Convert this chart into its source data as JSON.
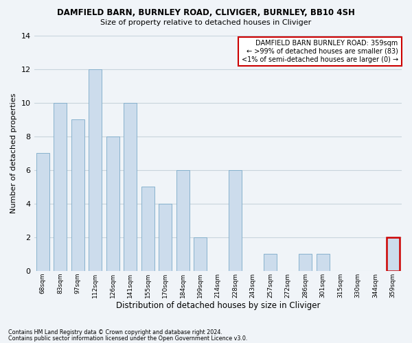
{
  "title": "DAMFIELD BARN, BURNLEY ROAD, CLIVIGER, BURNLEY, BB10 4SH",
  "subtitle": "Size of property relative to detached houses in Cliviger",
  "xlabel": "Distribution of detached houses by size in Cliviger",
  "ylabel": "Number of detached properties",
  "categories": [
    "68sqm",
    "83sqm",
    "97sqm",
    "112sqm",
    "126sqm",
    "141sqm",
    "155sqm",
    "170sqm",
    "184sqm",
    "199sqm",
    "214sqm",
    "228sqm",
    "243sqm",
    "257sqm",
    "272sqm",
    "286sqm",
    "301sqm",
    "315sqm",
    "330sqm",
    "344sqm",
    "359sqm"
  ],
  "values": [
    7,
    10,
    9,
    12,
    8,
    10,
    5,
    4,
    6,
    2,
    0,
    6,
    0,
    1,
    0,
    1,
    1,
    0,
    0,
    0,
    2
  ],
  "bar_color": "#ccdcec",
  "bar_edge_color": "#7aaac8",
  "highlight_index": 20,
  "highlight_bar_edge_color": "#cc0000",
  "annotation_box_color": "#cc0000",
  "annotation_text": [
    "DAMFIELD BARN BURNLEY ROAD: 359sqm",
    "← >99% of detached houses are smaller (83)",
    "<1% of semi-detached houses are larger (0) →"
  ],
  "footer_text": [
    "Contains HM Land Registry data © Crown copyright and database right 2024.",
    "Contains public sector information licensed under the Open Government Licence v3.0."
  ],
  "ylim": [
    0,
    14
  ],
  "background_color": "#f0f4f8",
  "grid_color": "#c8d4dc"
}
